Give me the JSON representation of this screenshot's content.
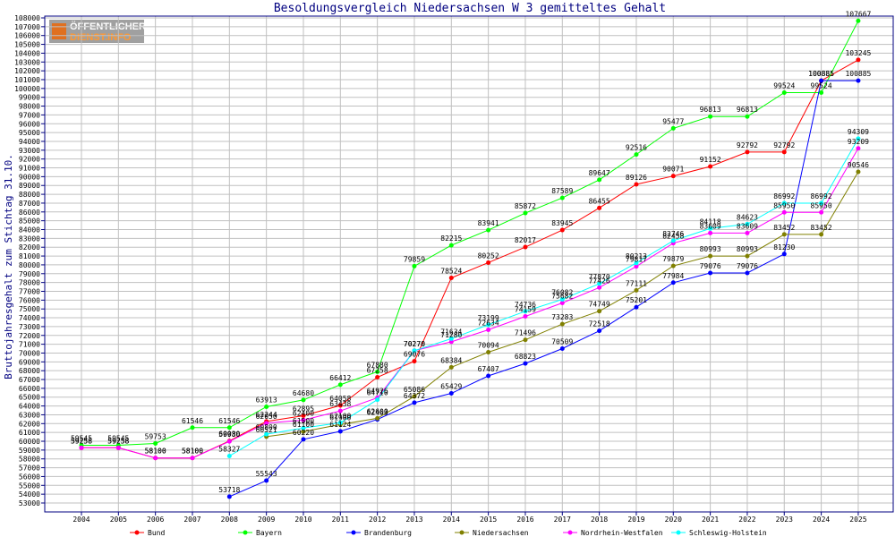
{
  "logo": {
    "line1": "ÖFFENTLICHER",
    "line2": "DIENST.INFO"
  },
  "colors": {
    "title": "#000080",
    "axis": "#000080",
    "grid": "#c0c0c0",
    "logo_bg": "#a0a0a0",
    "logo_line1": "#ffffff",
    "logo_line2": "#ff9933"
  },
  "chart_data": {
    "type": "line",
    "title": "Besoldungsvergleich Niedersachsen W 3 gemitteltes Gehalt",
    "xlabel": "",
    "ylabel": "Bruttojahresgehalt zum Stichtag 31.10.",
    "x": [
      "2004",
      "2005",
      "2006",
      "2007",
      "2008",
      "2009",
      "2010",
      "2011",
      "2012",
      "2013",
      "2014",
      "2015",
      "2016",
      "2017",
      "2018",
      "2019",
      "2020",
      "2021",
      "2022",
      "2023",
      "2024",
      "2025"
    ],
    "ylim": [
      53000,
      108000
    ],
    "y_tick_step": 1000,
    "grid": true,
    "legend_position": "bottom",
    "series": [
      {
        "name": "Bund",
        "color": "#ff0000",
        "values": [
          59258,
          59258,
          58100,
          58100,
          60030,
          62244,
          62895,
          64058,
          67258,
          69076,
          78524,
          80252,
          82017,
          83945,
          86455,
          89126,
          90071,
          91152,
          92792,
          92792,
          100885,
          103245
        ]
      },
      {
        "name": "Bayern",
        "color": "#00ff00",
        "values": [
          59545,
          59545,
          59753,
          61546,
          61546,
          63913,
          64680,
          66412,
          67880,
          79859,
          82215,
          83941,
          85872,
          87589,
          89647,
          92516,
          95477,
          96813,
          96813,
          99524,
          99524,
          107667
        ]
      },
      {
        "name": "Brandenburg",
        "color": "#0000ff",
        "values": [
          null,
          null,
          null,
          null,
          53718,
          55543,
          60220,
          61124,
          62463,
          64372,
          65429,
          67407,
          68823,
          70509,
          72518,
          75201,
          77984,
          79076,
          79076,
          81230,
          100885,
          100885
        ]
      },
      {
        "name": "Niedersachsen",
        "color": "#808000",
        "values": [
          null,
          null,
          null,
          null,
          null,
          60521,
          61100,
          61900,
          62600,
          65086,
          68384,
          70094,
          71496,
          73283,
          74749,
          77111,
          79879,
          80993,
          80993,
          83452,
          83452,
          90546
        ]
      },
      {
        "name": "Nordrhein-Westfalen",
        "color": "#ff00ff",
        "values": [
          59258,
          59258,
          58100,
          58100,
          59980,
          62050,
          62400,
          63438,
          64926,
          70270,
          71280,
          72634,
          74159,
          75682,
          77426,
          79817,
          82458,
          83609,
          83609,
          85950,
          85950,
          93209
        ]
      },
      {
        "name": "Schleswig-Holstein",
        "color": "#00ffff",
        "values": [
          null,
          null,
          null,
          null,
          58327,
          60800,
          61500,
          62100,
          64710,
          70270,
          71634,
          73199,
          74736,
          76082,
          77870,
          80213,
          82746,
          84118,
          84623,
          86992,
          86992,
          94309
        ]
      }
    ]
  }
}
